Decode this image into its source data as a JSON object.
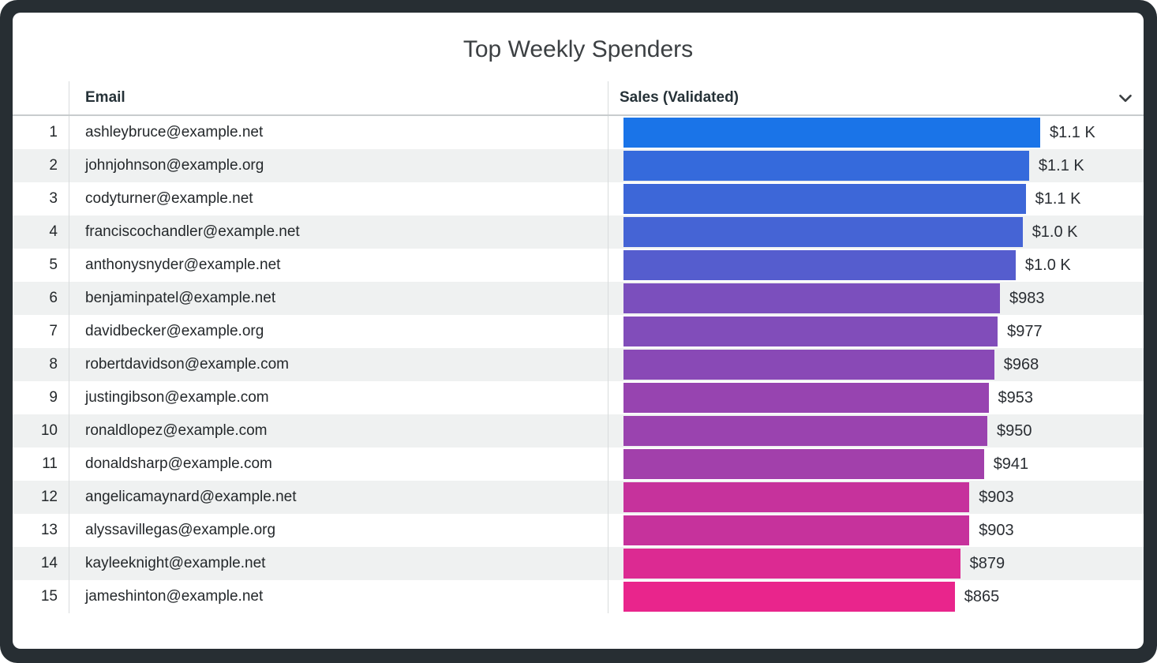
{
  "widget": {
    "title": "Top Weekly Spenders"
  },
  "table": {
    "email_header": "Email",
    "sales_header": "Sales (Validated)",
    "sort_icon": "chevron-down"
  },
  "colors": {
    "frame": "#272E33",
    "alt_row": "#EFF1F1",
    "bar_gradient_start": "#1A74E8",
    "bar_gradient_end": "#E9258C"
  },
  "chart_data": {
    "type": "bar",
    "orientation": "horizontal",
    "title": "Top Weekly Spenders",
    "xlabel": "Sales (Validated)",
    "ylabel": "Email",
    "xlim": [
      0,
      1088
    ],
    "legend": "none",
    "grid": false,
    "ranks": [
      1,
      2,
      3,
      4,
      5,
      6,
      7,
      8,
      9,
      10,
      11,
      12,
      13,
      14,
      15
    ],
    "categories": [
      "ashleybruce@example.net",
      "johnjohnson@example.org",
      "codyturner@example.net",
      "franciscochandler@example.net",
      "anthonysnyder@example.net",
      "benjaminpatel@example.net",
      "davidbecker@example.org",
      "robertdavidson@example.com",
      "justingibson@example.com",
      "ronaldlopez@example.com",
      "donaldsharp@example.com",
      "angelicamaynard@example.net",
      "alyssavillegas@example.org",
      "kayleeknight@example.net",
      "jameshinton@example.net"
    ],
    "values": [
      1088,
      1059,
      1050,
      1042,
      1024,
      983,
      977,
      968,
      953,
      950,
      941,
      903,
      903,
      879,
      865
    ],
    "value_labels": [
      "$1.1 K",
      "$1.1 K",
      "$1.1 K",
      "$1.0 K",
      "$1.0 K",
      "$983",
      "$977",
      "$968",
      "$953",
      "$950",
      "$941",
      "$903",
      "$903",
      "$879",
      "$865"
    ],
    "bar_color_start": "#1A74E8",
    "bar_color_end": "#E9258C"
  }
}
